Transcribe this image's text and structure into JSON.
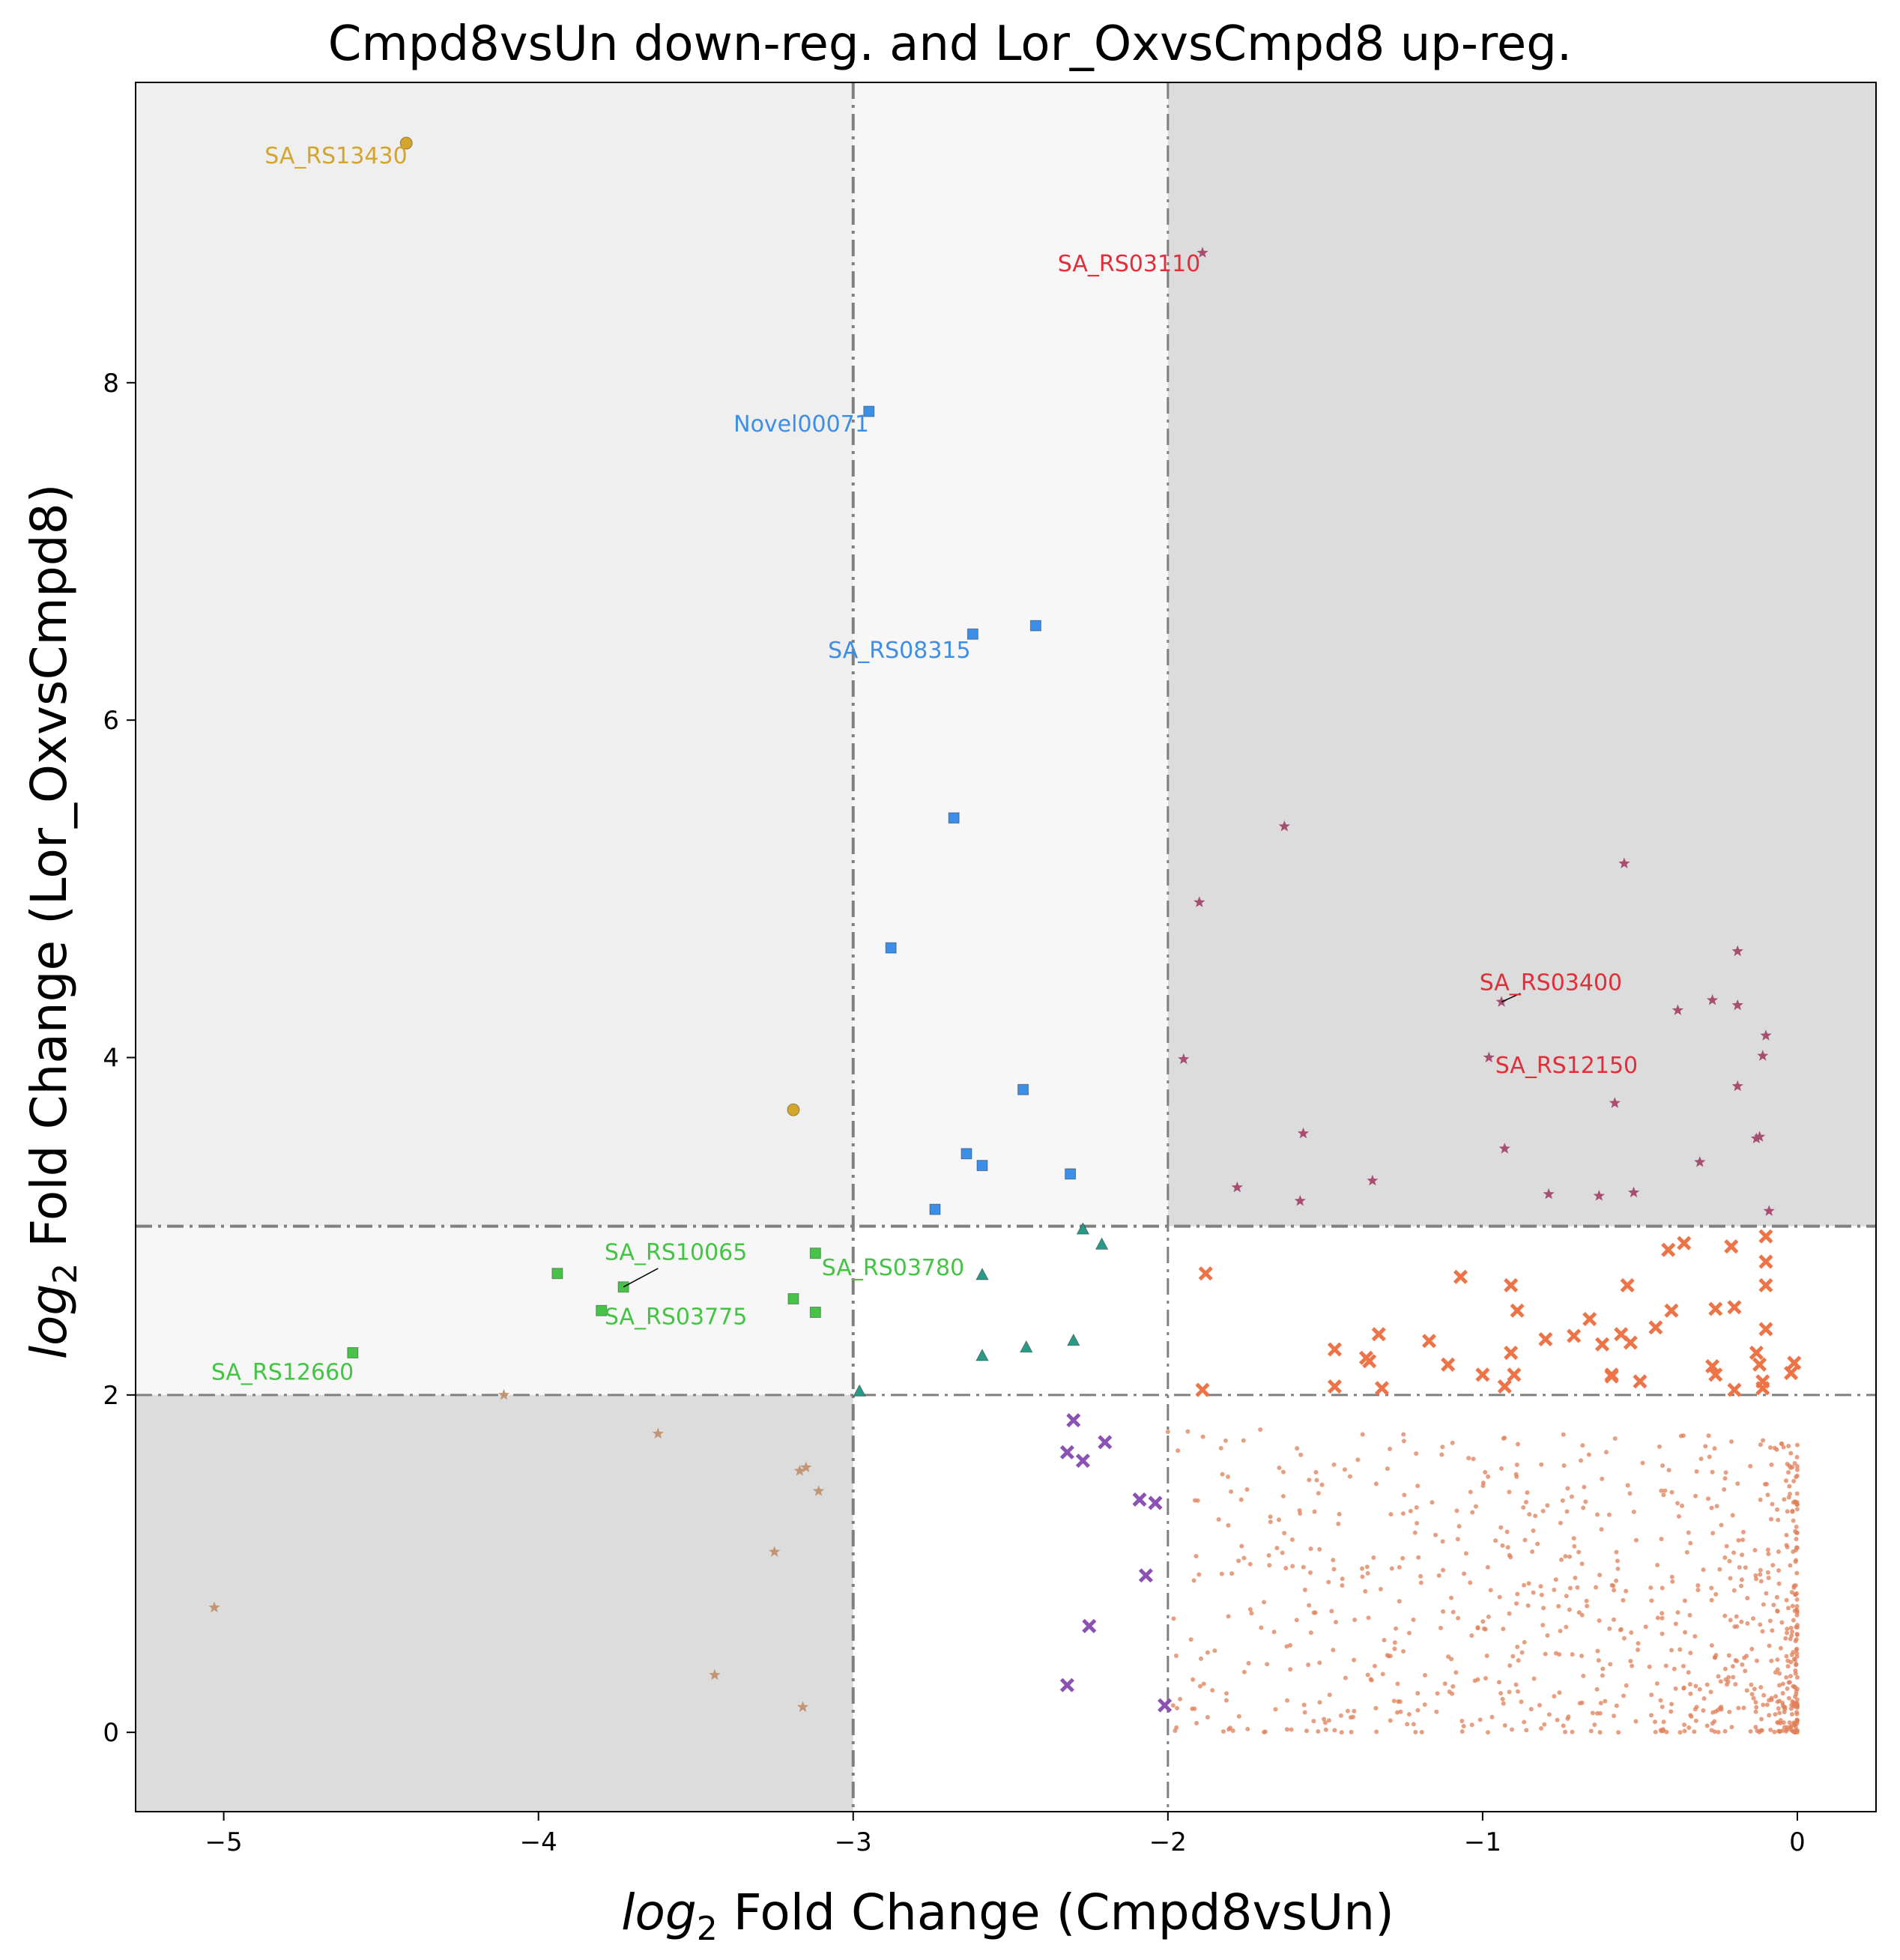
{
  "chart_data": {
    "type": "scatter",
    "title": "Cmpd8vsUn down-reg. and Lor_OxvsCmpd8 up-reg.",
    "xlabel": {
      "prefix": "log",
      "sub": "2",
      "rest": " Fold Change (Cmpd8vsUn)"
    },
    "ylabel": {
      "prefix": "log",
      "sub": "2",
      "rest": " Fold Change (Lor_OxvsCmpd8)"
    },
    "xlim": [
      -5.28,
      0.25
    ],
    "ylim": [
      -0.47,
      9.78
    ],
    "xticks": [
      -5,
      -4,
      -3,
      -2,
      -1,
      0
    ],
    "yticks": [
      0,
      2,
      4,
      6,
      8
    ],
    "xtick_labels": [
      "−5",
      "−4",
      "−3",
      "−2",
      "−1",
      "0"
    ],
    "ytick_labels": [
      "0",
      "2",
      "4",
      "6",
      "8"
    ],
    "thresholds": {
      "x": [
        -3,
        -2
      ],
      "y": [
        2,
        3
      ]
    },
    "regions": [
      {
        "x": [
          -5.28,
          -3
        ],
        "y": [
          3,
          9.78
        ],
        "color": "#efefef"
      },
      {
        "x": [
          -3,
          -2
        ],
        "y": [
          3,
          9.78
        ],
        "color": "#f7f7f7"
      },
      {
        "x": [
          -2,
          0.25
        ],
        "y": [
          3,
          9.78
        ],
        "color": "#dcdcdc"
      },
      {
        "x": [
          -5.28,
          -3
        ],
        "y": [
          2,
          3
        ],
        "color": "#f7f7f7"
      },
      {
        "x": [
          -5.28,
          -3
        ],
        "y": [
          -0.47,
          2
        ],
        "color": "#dcdcdc"
      }
    ],
    "series": [
      {
        "marker": "circle",
        "color": "#d4a52c",
        "points": [
          [
            -4.42,
            9.42
          ],
          [
            -3.19,
            3.69
          ]
        ]
      },
      {
        "marker": "square",
        "color": "#3c8ee6",
        "points": [
          [
            -2.95,
            7.83
          ],
          [
            -2.42,
            6.56
          ],
          [
            -2.62,
            6.51
          ],
          [
            -2.68,
            5.42
          ],
          [
            -2.88,
            4.65
          ],
          [
            -2.46,
            3.81
          ],
          [
            -2.64,
            3.43
          ],
          [
            -2.59,
            3.36
          ],
          [
            -2.31,
            3.31
          ],
          [
            -2.74,
            3.1
          ]
        ]
      },
      {
        "marker": "star",
        "color": "#a64f73",
        "points": [
          [
            -1.89,
            8.77
          ],
          [
            -1.63,
            5.37
          ],
          [
            -0.55,
            5.15
          ],
          [
            -1.9,
            4.92
          ],
          [
            -0.19,
            4.63
          ],
          [
            -0.94,
            4.33
          ],
          [
            -0.27,
            4.34
          ],
          [
            -0.19,
            4.31
          ],
          [
            -0.38,
            4.28
          ],
          [
            -0.1,
            4.13
          ],
          [
            -1.95,
            3.99
          ],
          [
            -0.98,
            4.0
          ],
          [
            -0.11,
            4.01
          ],
          [
            -0.19,
            3.83
          ],
          [
            -0.58,
            3.73
          ],
          [
            -1.57,
            3.55
          ],
          [
            -0.13,
            3.52
          ],
          [
            -0.12,
            3.53
          ],
          [
            -0.93,
            3.46
          ],
          [
            -0.31,
            3.38
          ],
          [
            -1.35,
            3.27
          ],
          [
            -1.78,
            3.23
          ],
          [
            -0.52,
            3.2
          ],
          [
            -0.79,
            3.19
          ],
          [
            -0.63,
            3.18
          ],
          [
            -1.58,
            3.15
          ],
          [
            -0.09,
            3.09
          ]
        ]
      },
      {
        "marker": "square",
        "color": "#49c249",
        "points": [
          [
            -3.12,
            2.84
          ],
          [
            -3.94,
            2.72
          ],
          [
            -3.73,
            2.64
          ],
          [
            -3.19,
            2.57
          ],
          [
            -3.8,
            2.5
          ],
          [
            -3.12,
            2.49
          ],
          [
            -4.59,
            2.25
          ]
        ]
      },
      {
        "marker": "triangle",
        "color": "#2a9988",
        "points": [
          [
            -2.27,
            2.98
          ],
          [
            -2.21,
            2.89
          ],
          [
            -2.59,
            2.71
          ],
          [
            -2.3,
            2.32
          ],
          [
            -2.45,
            2.28
          ],
          [
            -2.59,
            2.23
          ],
          [
            -2.98,
            2.02
          ]
        ]
      },
      {
        "marker": "x",
        "color": "#ee7347",
        "points": [
          [
            -0.1,
            2.94
          ],
          [
            -0.36,
            2.9
          ],
          [
            -0.41,
            2.86
          ],
          [
            -0.21,
            2.88
          ],
          [
            -0.1,
            2.79
          ],
          [
            -1.07,
            2.7
          ],
          [
            -1.88,
            2.72
          ],
          [
            -0.54,
            2.65
          ],
          [
            -0.91,
            2.65
          ],
          [
            -0.1,
            2.65
          ],
          [
            -0.2,
            2.52
          ],
          [
            -0.26,
            2.51
          ],
          [
            -0.89,
            2.5
          ],
          [
            -0.4,
            2.5
          ],
          [
            -0.1,
            2.39
          ],
          [
            -0.45,
            2.4
          ],
          [
            -0.66,
            2.45
          ],
          [
            -0.56,
            2.36
          ],
          [
            -0.71,
            2.35
          ],
          [
            -0.53,
            2.31
          ],
          [
            -0.8,
            2.33
          ],
          [
            -0.62,
            2.3
          ],
          [
            -1.33,
            2.36
          ],
          [
            -1.17,
            2.32
          ],
          [
            -1.47,
            2.27
          ],
          [
            -1.37,
            2.22
          ],
          [
            -1.36,
            2.2
          ],
          [
            -0.91,
            2.25
          ],
          [
            -0.13,
            2.25
          ],
          [
            -0.12,
            2.18
          ],
          [
            -1.11,
            2.18
          ],
          [
            -0.27,
            2.17
          ],
          [
            -0.01,
            2.19
          ],
          [
            -0.59,
            2.11
          ],
          [
            -0.9,
            2.12
          ],
          [
            -0.5,
            2.08
          ],
          [
            -1.0,
            2.12
          ],
          [
            -0.26,
            2.12
          ],
          [
            -0.02,
            2.13
          ],
          [
            -0.11,
            2.08
          ],
          [
            -0.11,
            2.04
          ],
          [
            -0.59,
            2.12
          ],
          [
            -1.32,
            2.04
          ],
          [
            -1.47,
            2.05
          ],
          [
            -0.93,
            2.05
          ],
          [
            -0.2,
            2.03
          ],
          [
            -1.89,
            2.03
          ]
        ]
      },
      {
        "marker": "x",
        "color": "#8b52b4",
        "points": [
          [
            -2.3,
            1.85
          ],
          [
            -2.2,
            1.72
          ],
          [
            -2.32,
            1.66
          ],
          [
            -2.27,
            1.61
          ],
          [
            -2.09,
            1.38
          ],
          [
            -2.04,
            1.36
          ],
          [
            -2.07,
            0.93
          ],
          [
            -2.25,
            0.63
          ],
          [
            -2.32,
            0.28
          ],
          [
            -2.01,
            0.16
          ]
        ]
      },
      {
        "marker": "star",
        "color": "#c29575",
        "points": [
          [
            -4.11,
            2.0
          ],
          [
            -3.62,
            1.77
          ],
          [
            -3.15,
            1.57
          ],
          [
            -3.17,
            1.55
          ],
          [
            -3.11,
            1.43
          ],
          [
            -3.25,
            1.07
          ],
          [
            -5.03,
            0.74
          ],
          [
            -3.44,
            0.34
          ],
          [
            -3.16,
            0.15
          ]
        ]
      }
    ],
    "annotations": [
      {
        "text": "SA_RS13430",
        "x": -4.87,
        "y": 9.3,
        "color": "#d4a52c"
      },
      {
        "text": "SA_RS03110",
        "x": -2.35,
        "y": 8.66,
        "color": "#e02f3b"
      },
      {
        "text": "Novel00071",
        "x": -3.38,
        "y": 7.71,
        "color": "#3c8ee6"
      },
      {
        "text": "SA_RS08315",
        "x": -3.08,
        "y": 6.37,
        "color": "#3c8ee6"
      },
      {
        "text": "SA_RS03400",
        "x": -1.01,
        "y": 4.4,
        "color": "#e02f3b"
      },
      {
        "text": "SA_RS12150",
        "x": -0.96,
        "y": 3.91,
        "color": "#e02f3b"
      },
      {
        "text": "SA_RS10065",
        "x": -3.79,
        "y": 2.8,
        "color": "#43c443"
      },
      {
        "text": "SA_RS03780",
        "x": -3.1,
        "y": 2.71,
        "color": "#43c443"
      },
      {
        "text": "SA_RS03775",
        "x": -3.79,
        "y": 2.42,
        "color": "#43c443"
      },
      {
        "text": "SA_RS12660",
        "x": -5.04,
        "y": 2.09,
        "color": "#43c443"
      }
    ],
    "connectors": [
      {
        "from": [
          -3.73,
          2.64
        ],
        "to": [
          -3.62,
          2.75
        ]
      },
      {
        "from": [
          -0.94,
          4.33
        ],
        "to": [
          -0.88,
          4.38
        ]
      }
    ],
    "background_noise": {
      "color": "#e07f57",
      "count": 850,
      "seed": 7,
      "x_range": [
        -2.0,
        0
      ],
      "y_range": [
        0,
        1.8
      ]
    }
  }
}
